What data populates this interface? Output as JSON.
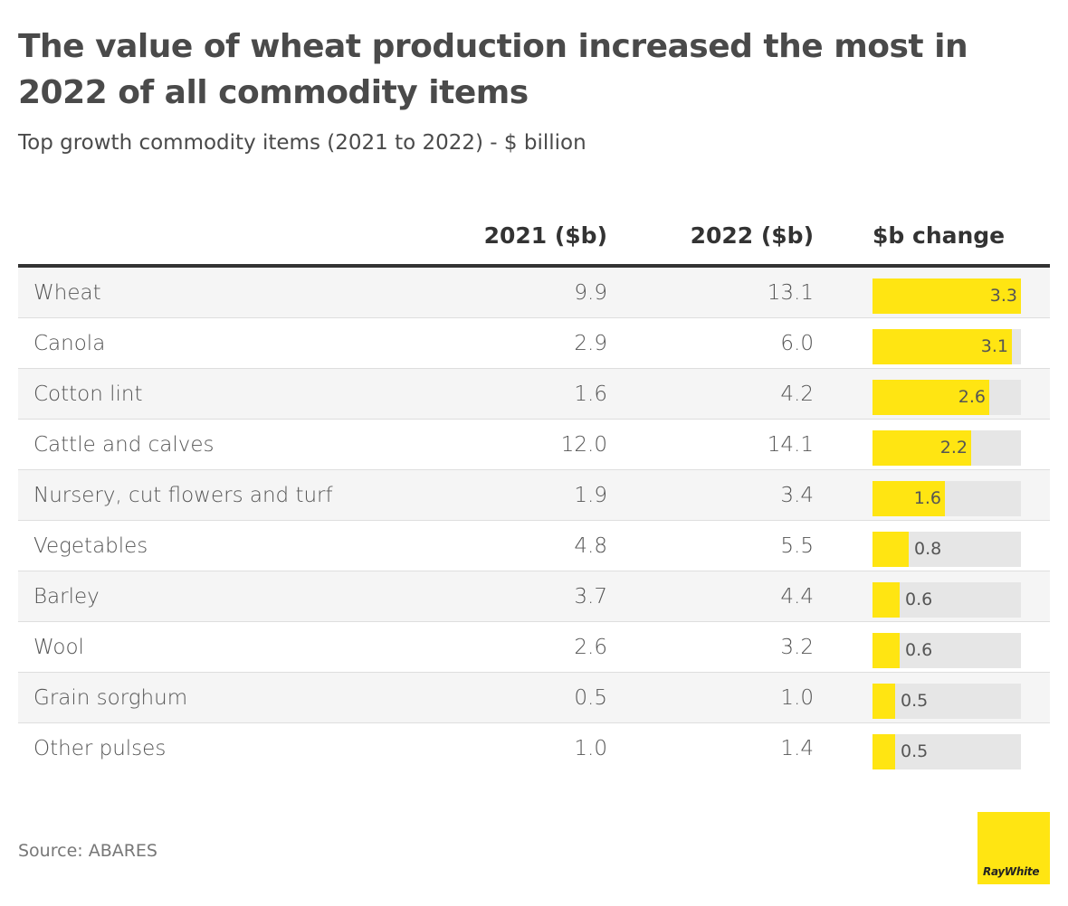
{
  "title": "The value of wheat production increased the most in 2022 of all commodity items",
  "subtitle": "Top growth commodity items (2021 to 2022) - $ billion",
  "source": "Source: ABARES",
  "logo_text": "RayWhite",
  "colors": {
    "bar": "#ffe512",
    "track": "#e6e6e6",
    "header_rule": "#333333"
  },
  "chart_data": {
    "type": "table",
    "columns": [
      "",
      "2021 ($b)",
      "2022 ($b)",
      "$b change"
    ],
    "change_max": 3.3,
    "rows": [
      {
        "item": "Wheat",
        "y2021": "9.9",
        "y2022": "13.1",
        "change": 3.3
      },
      {
        "item": "Canola",
        "y2021": "2.9",
        "y2022": "6.0",
        "change": 3.1
      },
      {
        "item": "Cotton lint",
        "y2021": "1.6",
        "y2022": "4.2",
        "change": 2.6
      },
      {
        "item": "Cattle and calves",
        "y2021": "12.0",
        "y2022": "14.1",
        "change": 2.2
      },
      {
        "item": "Nursery, cut flowers and turf",
        "y2021": "1.9",
        "y2022": "3.4",
        "change": 1.6
      },
      {
        "item": "Vegetables",
        "y2021": "4.8",
        "y2022": "5.5",
        "change": 0.8
      },
      {
        "item": "Barley",
        "y2021": "3.7",
        "y2022": "4.4",
        "change": 0.6
      },
      {
        "item": "Wool",
        "y2021": "2.6",
        "y2022": "3.2",
        "change": 0.6
      },
      {
        "item": "Grain sorghum",
        "y2021": "0.5",
        "y2022": "1.0",
        "change": 0.5
      },
      {
        "item": "Other pulses",
        "y2021": "1.0",
        "y2022": "1.4",
        "change": 0.5
      }
    ]
  }
}
